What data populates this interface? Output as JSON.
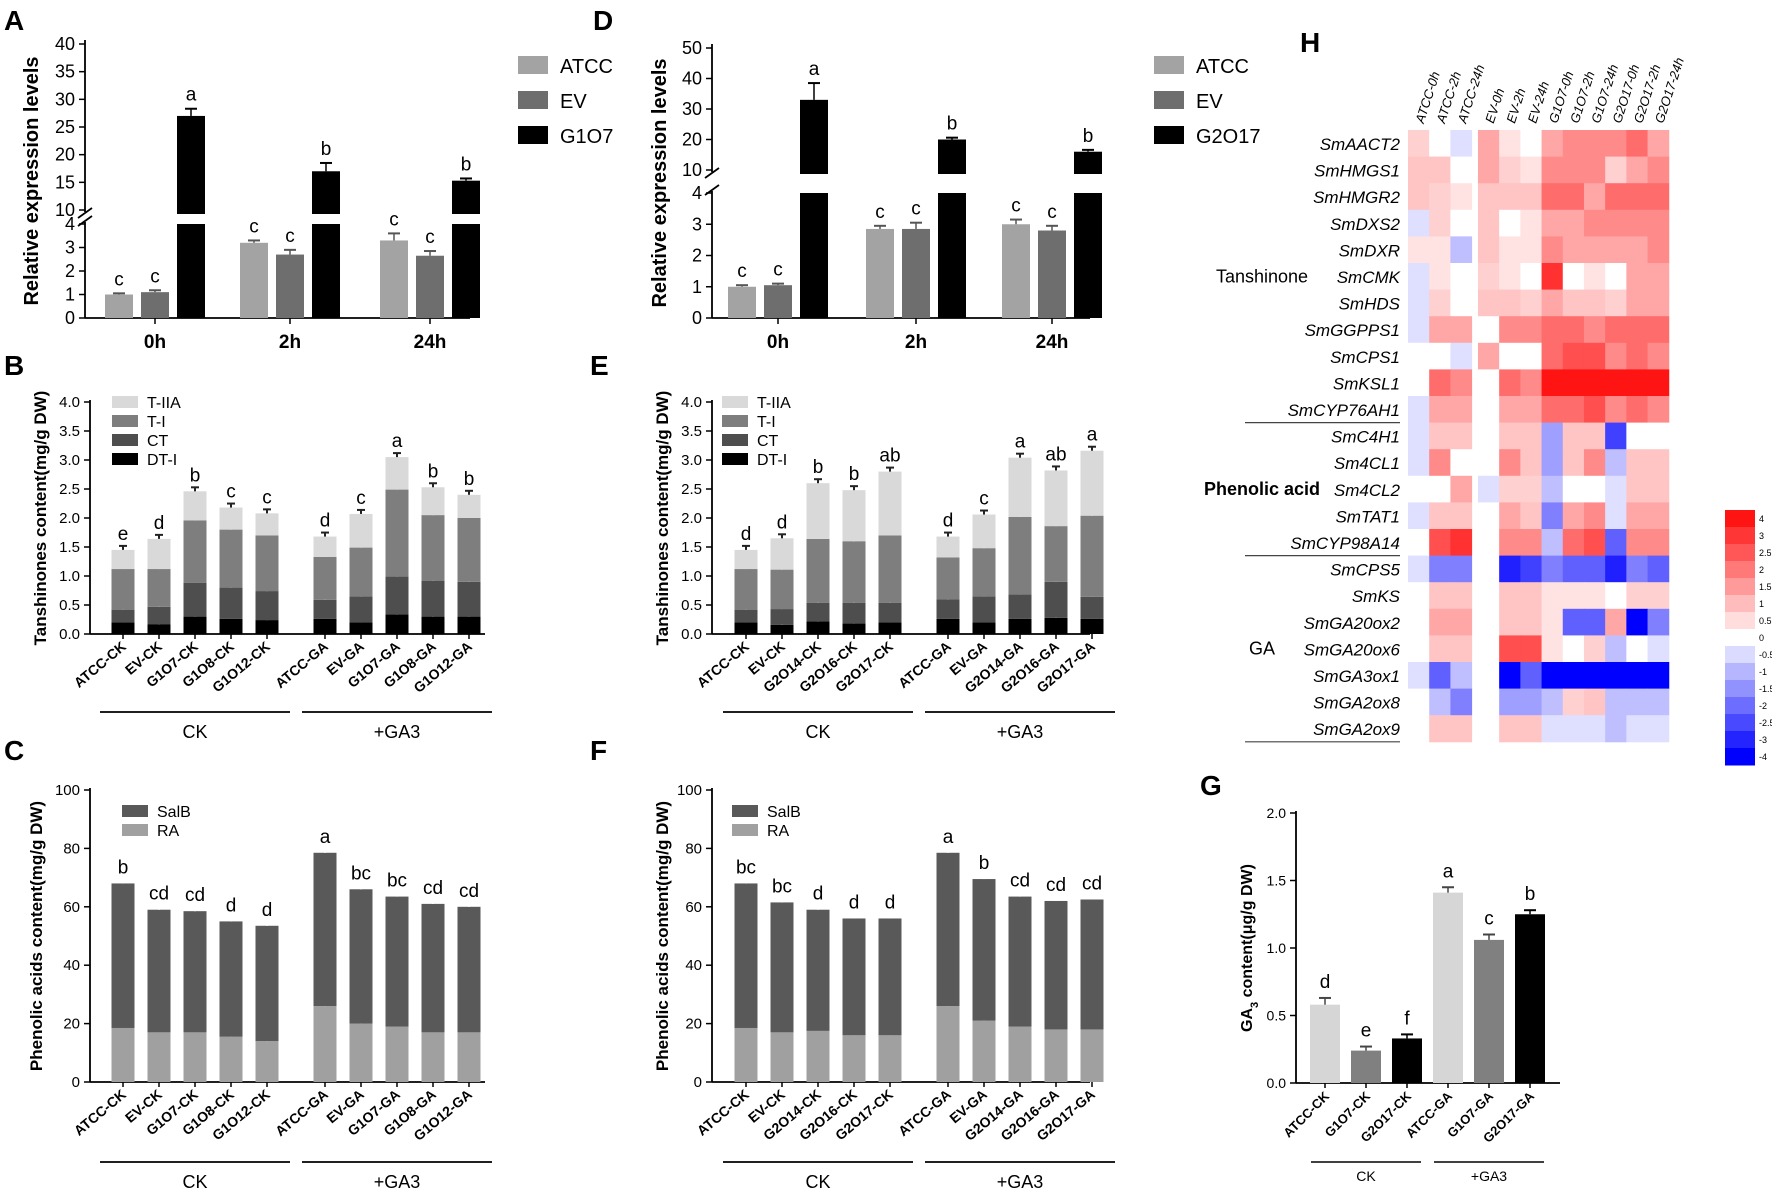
{
  "chart_data": [
    {
      "panel": "A",
      "type": "bar",
      "ylabel": "Relative expression levels",
      "ylim": [
        0,
        40
      ],
      "axis_break": [
        4,
        10
      ],
      "lower_ticks": [
        "0",
        "1",
        "2",
        "3",
        "4"
      ],
      "upper_ticks": [
        "10",
        "15",
        "20",
        "25",
        "30",
        "35",
        "40"
      ],
      "groups": [
        "0h",
        "2h",
        "24h"
      ],
      "series": [
        {
          "name": "ATCC",
          "color": "#a3a3a3",
          "values": [
            1.0,
            3.2,
            3.3
          ],
          "errors": [
            0.05,
            0.1,
            0.3
          ],
          "letters": [
            "c",
            "c",
            "c"
          ]
        },
        {
          "name": "EV",
          "color": "#6e6e6e",
          "values": [
            1.1,
            2.7,
            2.65
          ],
          "errors": [
            0.08,
            0.2,
            0.2
          ],
          "letters": [
            "c",
            "c",
            "c"
          ]
        },
        {
          "name": "G1O7",
          "color": "#000000",
          "values": [
            27,
            17,
            15.3
          ],
          "errors": [
            1.3,
            1.5,
            0.4
          ],
          "letters": [
            "a",
            "b",
            "b"
          ]
        }
      ]
    },
    {
      "panel": "D",
      "type": "bar",
      "ylabel": "Relative expression levels",
      "ylim": [
        0,
        50
      ],
      "axis_break": [
        4,
        10
      ],
      "lower_ticks": [
        "0",
        "1",
        "2",
        "3",
        "4"
      ],
      "upper_ticks": [
        "10",
        "20",
        "30",
        "40",
        "50"
      ],
      "groups": [
        "0h",
        "2h",
        "24h"
      ],
      "series": [
        {
          "name": "ATCC",
          "color": "#a3a3a3",
          "values": [
            1.0,
            2.85,
            3.0
          ],
          "errors": [
            0.05,
            0.1,
            0.15
          ],
          "letters": [
            "c",
            "c",
            "c"
          ]
        },
        {
          "name": "EV",
          "color": "#6e6e6e",
          "values": [
            1.05,
            2.85,
            2.8
          ],
          "errors": [
            0.05,
            0.2,
            0.15
          ],
          "letters": [
            "c",
            "c",
            "c"
          ]
        },
        {
          "name": "G2O17",
          "color": "#000000",
          "values": [
            33,
            20,
            16
          ],
          "errors": [
            5.5,
            0.6,
            0.6
          ],
          "letters": [
            "a",
            "b",
            "b"
          ]
        }
      ]
    },
    {
      "panel": "B",
      "type": "bar",
      "ylabel": "Tanshinones content(mg/g DW)",
      "ylim": [
        0,
        4
      ],
      "ticks": [
        "0.0",
        "0.5",
        "1.0",
        "1.5",
        "2.0",
        "2.5",
        "3.0",
        "3.5",
        "4.0"
      ],
      "categories": [
        "ATCC-CK",
        "EV-CK",
        "G1O7-CK",
        "G1O8-CK",
        "G1O12-CK",
        "ATCC-GA",
        "EV-GA",
        "G1O7-GA",
        "G1O8-GA",
        "G1O12-GA"
      ],
      "groups": [
        {
          "label": "CK",
          "from": 0,
          "to": 4
        },
        {
          "label": "+GA3",
          "from": 5,
          "to": 9
        }
      ],
      "series": [
        {
          "name": "DT-I",
          "color": "#000000",
          "values": [
            0.2,
            0.17,
            0.3,
            0.26,
            0.24,
            0.26,
            0.2,
            0.34,
            0.3,
            0.3
          ]
        },
        {
          "name": "CT",
          "color": "#4e4e4e",
          "values": [
            0.22,
            0.3,
            0.58,
            0.54,
            0.5,
            0.33,
            0.45,
            0.65,
            0.62,
            0.6
          ]
        },
        {
          "name": "T-I",
          "color": "#7e7e7e",
          "values": [
            0.7,
            0.65,
            1.08,
            1.0,
            0.96,
            0.74,
            0.84,
            1.5,
            1.13,
            1.1
          ]
        },
        {
          "name": "T-IIA",
          "color": "#d9d9d9",
          "values": [
            0.33,
            0.52,
            0.5,
            0.38,
            0.38,
            0.35,
            0.58,
            0.56,
            0.48,
            0.4
          ]
        }
      ],
      "letters": [
        "e",
        "d",
        "b",
        "c",
        "c",
        "d",
        "c",
        "a",
        "b",
        "b"
      ]
    },
    {
      "panel": "E",
      "type": "bar",
      "ylabel": "Tanshinones content(mg/g DW)",
      "ylim": [
        0,
        4
      ],
      "ticks": [
        "0.0",
        "0.5",
        "1.0",
        "1.5",
        "2.0",
        "2.5",
        "3.0",
        "3.5",
        "4.0"
      ],
      "categories": [
        "ATCC-CK",
        "EV-CK",
        "G2O14-CK",
        "G2O16-CK",
        "G2O17-CK",
        "ATCC-GA",
        "EV-GA",
        "G2O14-GA",
        "G2O16-GA",
        "G2O17-GA"
      ],
      "groups": [
        {
          "label": "CK",
          "from": 0,
          "to": 4
        },
        {
          "label": "+GA3",
          "from": 5,
          "to": 9
        }
      ],
      "series": [
        {
          "name": "DT-I",
          "color": "#000000",
          "values": [
            0.2,
            0.16,
            0.22,
            0.18,
            0.2,
            0.26,
            0.2,
            0.26,
            0.28,
            0.26
          ]
        },
        {
          "name": "CT",
          "color": "#4e4e4e",
          "values": [
            0.22,
            0.27,
            0.32,
            0.36,
            0.34,
            0.34,
            0.45,
            0.42,
            0.62,
            0.38
          ]
        },
        {
          "name": "T-I",
          "color": "#7e7e7e",
          "values": [
            0.7,
            0.68,
            1.1,
            1.06,
            1.16,
            0.72,
            0.83,
            1.34,
            0.96,
            1.4
          ]
        },
        {
          "name": "T-IIA",
          "color": "#d9d9d9",
          "values": [
            0.33,
            0.54,
            0.96,
            0.88,
            1.1,
            0.36,
            0.58,
            1.02,
            0.96,
            1.12
          ]
        }
      ],
      "letters": [
        "d",
        "d",
        "b",
        "b",
        "ab",
        "d",
        "c",
        "a",
        "ab",
        "a"
      ]
    },
    {
      "panel": "C",
      "type": "bar",
      "ylabel": "Phenolic acids content(mg/g DW)",
      "ylim": [
        0,
        100
      ],
      "ticks": [
        "0",
        "20",
        "40",
        "60",
        "80",
        "100"
      ],
      "categories": [
        "ATCC-CK",
        "EV-CK",
        "G1O7-CK",
        "G1O8-CK",
        "G1O12-CK",
        "ATCC-GA",
        "EV-GA",
        "G1O7-GA",
        "G1O8-GA",
        "G1O12-GA"
      ],
      "groups": [
        {
          "label": "CK",
          "from": 0,
          "to": 4
        },
        {
          "label": "+GA3",
          "from": 5,
          "to": 9
        }
      ],
      "series": [
        {
          "name": "RA",
          "color": "#a0a0a0",
          "values": [
            18.5,
            17,
            17,
            15.5,
            14,
            26,
            20,
            19,
            17,
            17
          ]
        },
        {
          "name": "SalB",
          "color": "#595959",
          "values": [
            49.5,
            42,
            41.5,
            39.5,
            39.5,
            52.5,
            46,
            44.5,
            44,
            43
          ]
        }
      ],
      "letters": [
        "b",
        "cd",
        "cd",
        "d",
        "d",
        "a",
        "bc",
        "bc",
        "cd",
        "cd"
      ]
    },
    {
      "panel": "F",
      "type": "bar",
      "ylabel": "Phenolic acids content(mg/g DW)",
      "ylim": [
        0,
        100
      ],
      "ticks": [
        "0",
        "20",
        "40",
        "60",
        "80",
        "100"
      ],
      "categories": [
        "ATCC-CK",
        "EV-CK",
        "G2O14-CK",
        "G2O16-CK",
        "G2O17-CK",
        "ATCC-GA",
        "EV-GA",
        "G2O14-GA",
        "G2O16-GA",
        "G2O17-GA"
      ],
      "groups": [
        {
          "label": "CK",
          "from": 0,
          "to": 4
        },
        {
          "label": "+GA3",
          "from": 5,
          "to": 9
        }
      ],
      "series": [
        {
          "name": "RA",
          "color": "#a0a0a0",
          "values": [
            18.5,
            17,
            17.5,
            16,
            16,
            26,
            21,
            19,
            18,
            18
          ]
        },
        {
          "name": "SalB",
          "color": "#595959",
          "values": [
            49.5,
            44.5,
            41.5,
            40,
            40,
            52.5,
            48.5,
            44.5,
            44,
            44.5
          ]
        }
      ],
      "letters": [
        "bc",
        "bc",
        "d",
        "d",
        "d",
        "a",
        "b",
        "cd",
        "cd",
        "cd"
      ]
    },
    {
      "panel": "G",
      "type": "bar",
      "ylabel": "GA3 content(μg/g DW)",
      "ylabel_main": "GA",
      "ylabel_sub": "3",
      "ylabel_rest": " content(μg/g DW)",
      "ylim": [
        0,
        2
      ],
      "ticks": [
        "0.0",
        "0.5",
        "1.0",
        "1.5",
        "2.0"
      ],
      "categories": [
        "ATCC-CK",
        "G1O7-CK",
        "G2O17-CK",
        "ATCC-GA",
        "G1O7-GA",
        "G2O17-GA"
      ],
      "colors": [
        "#d6d6d6",
        "#808080",
        "#000000",
        "#d6d6d6",
        "#808080",
        "#000000"
      ],
      "values": [
        0.58,
        0.24,
        0.33,
        1.41,
        1.06,
        1.25
      ],
      "errors": [
        0.05,
        0.03,
        0.03,
        0.04,
        0.04,
        0.03
      ],
      "letters": [
        "d",
        "e",
        "f",
        "a",
        "c",
        "b"
      ],
      "groups": [
        {
          "label": "CK",
          "from": 0,
          "to": 2
        },
        {
          "label": "+GA3",
          "from": 3,
          "to": 5
        }
      ]
    },
    {
      "panel": "H",
      "type": "heatmap",
      "columns": [
        "ATCC-0h",
        "ATCC-2h",
        "ATCC-24h",
        "EV-0h",
        "EV-2h",
        "EV-24h",
        "G1O7-0h",
        "G1O7-2h",
        "G1O7-24h",
        "G2O17-0h",
        "G2O17-2h",
        "G2O17-24h"
      ],
      "rows": [
        "SmAACT2",
        "SmHMGS1",
        "SmHMGR2",
        "SmDXS2",
        "SmDXR",
        "SmCMK",
        "SmHDS",
        "SmGGPPS1",
        "SmCPS1",
        "SmKSL1",
        "SmCYP76AH1",
        "SmC4H1",
        "Sm4CL1",
        "Sm4CL2",
        "SmTAT1",
        "SmCYP98A14",
        "SmCPS5",
        "SmKS",
        "SmGA20ox2",
        "SmGA20ox6",
        "SmGA3ox1",
        "SmGA2ox8",
        "SmGA2ox9"
      ],
      "row_groups": [
        {
          "label": "Tanshinone",
          "from": 0,
          "to": 10
        },
        {
          "label": "Phenolic acid",
          "from": 11,
          "to": 15
        },
        {
          "label": "GA",
          "from": 16,
          "to": 22
        }
      ],
      "legend_ticks": [
        "4",
        "3",
        "2.5",
        "2",
        "1.5",
        "1",
        "0.5",
        "0",
        "-0.5",
        "-1",
        "-1.5",
        "-2",
        "-2.5",
        "-3",
        "-4"
      ],
      "values": [
        [
          0.8,
          0,
          -0.5,
          1.5,
          0.5,
          0,
          1.5,
          2,
          2,
          2,
          2.5,
          1.5
        ],
        [
          1,
          1,
          0,
          1.5,
          0.8,
          0.5,
          2,
          2,
          2,
          0.8,
          1.5,
          2
        ],
        [
          1,
          0.8,
          0.5,
          1,
          1,
          1,
          2.5,
          2.5,
          1.5,
          2.5,
          2.5,
          2.5
        ],
        [
          -0.5,
          0.8,
          0,
          1,
          0,
          0.5,
          1.5,
          1.5,
          2,
          2,
          2,
          2
        ],
        [
          0.5,
          0.5,
          -1,
          1,
          0.5,
          0.5,
          2,
          1.5,
          1.5,
          1.5,
          1.5,
          2
        ],
        [
          -0.5,
          0.5,
          0,
          0.8,
          0.5,
          0,
          3.5,
          0,
          0.5,
          0,
          1.5,
          1.5
        ],
        [
          -0.5,
          0.8,
          0,
          1,
          1,
          0.8,
          1.5,
          1,
          1,
          0.8,
          1.5,
          1.5
        ],
        [
          -0.5,
          1.5,
          1.5,
          0,
          2,
          2,
          2.5,
          2.5,
          2,
          2.5,
          2.5,
          2.5
        ],
        [
          0,
          0,
          -0.5,
          1.5,
          0,
          0,
          2.5,
          3,
          3,
          2,
          2.5,
          2
        ],
        [
          0,
          2.5,
          2,
          0,
          2.5,
          2,
          4,
          4,
          4,
          4,
          4,
          4
        ],
        [
          -0.5,
          1.5,
          1.5,
          0,
          1.5,
          1.5,
          2.5,
          2.5,
          3,
          2,
          2.5,
          2
        ],
        [
          -0.5,
          1,
          1,
          0,
          1,
          1,
          -1.5,
          1,
          1,
          -3,
          0,
          0
        ],
        [
          -0.5,
          2,
          0,
          0,
          2,
          1,
          -1.5,
          1,
          2,
          -1,
          1,
          1
        ],
        [
          0,
          0,
          1.5,
          -0.5,
          0.8,
          0.8,
          -1,
          0,
          0,
          -0.5,
          1,
          1
        ],
        [
          -0.5,
          1,
          1,
          0,
          1.5,
          1,
          -2,
          1.5,
          2,
          -0.5,
          1.5,
          1.5
        ],
        [
          0,
          3,
          3.5,
          0,
          2,
          2,
          -1,
          2.5,
          3,
          -2.5,
          2,
          2
        ],
        [
          -0.5,
          -2,
          -2,
          0,
          -3.5,
          -3,
          -2,
          -2.5,
          -2.5,
          -3.5,
          -2,
          -2.5
        ],
        [
          0,
          1,
          1,
          0,
          1,
          1,
          0.5,
          0.5,
          0.5,
          0,
          0.8,
          0.8
        ],
        [
          0,
          1.5,
          1.5,
          0,
          1,
          1,
          0.5,
          -2.5,
          -2.5,
          1.5,
          -4,
          -2
        ],
        [
          0,
          1,
          1,
          0,
          3,
          3,
          0.5,
          0,
          0.8,
          -1,
          0,
          -0.5
        ],
        [
          -0.5,
          -2.5,
          -1,
          0,
          -4,
          -2.5,
          -4,
          -4,
          -4,
          -4,
          -4,
          -4
        ],
        [
          0,
          -1,
          -2,
          0,
          -1.5,
          -1.5,
          -1,
          0.8,
          1,
          -1,
          -1,
          -1
        ],
        [
          0,
          1,
          1,
          0,
          1,
          1,
          -0.5,
          -0.5,
          -0.5,
          -1,
          -0.5,
          -0.5
        ]
      ]
    }
  ]
}
